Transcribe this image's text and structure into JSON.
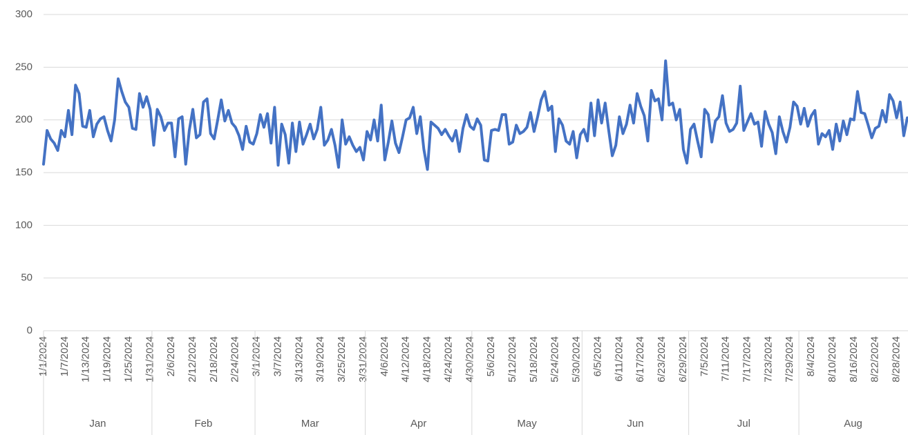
{
  "chart_data": {
    "type": "line",
    "categories": [
      "1/1/2024",
      null,
      null,
      null,
      null,
      null,
      "1/7/2024",
      null,
      null,
      null,
      null,
      null,
      "1/13/2024",
      null,
      null,
      null,
      null,
      null,
      "1/19/2024",
      null,
      null,
      null,
      null,
      null,
      "1/25/2024",
      null,
      null,
      null,
      null,
      null,
      "1/31/2024",
      null,
      null,
      null,
      null,
      null,
      "2/6/2024",
      null,
      null,
      null,
      null,
      null,
      "2/12/2024",
      null,
      null,
      null,
      null,
      null,
      "2/18/2024",
      null,
      null,
      null,
      null,
      null,
      "2/24/2024",
      null,
      null,
      null,
      null,
      null,
      "3/1/2024",
      null,
      null,
      null,
      null,
      null,
      "3/7/2024",
      null,
      null,
      null,
      null,
      null,
      "3/13/2024",
      null,
      null,
      null,
      null,
      null,
      "3/19/2024",
      null,
      null,
      null,
      null,
      null,
      "3/25/2024",
      null,
      null,
      null,
      null,
      null,
      "3/31/2024",
      null,
      null,
      null,
      null,
      null,
      "4/6/2024",
      null,
      null,
      null,
      null,
      null,
      "4/12/2024",
      null,
      null,
      null,
      null,
      null,
      "4/18/2024",
      null,
      null,
      null,
      null,
      null,
      "4/24/2024",
      null,
      null,
      null,
      null,
      null,
      "4/30/2024",
      null,
      null,
      null,
      null,
      null,
      "5/6/2024",
      null,
      null,
      null,
      null,
      null,
      "5/12/2024",
      null,
      null,
      null,
      null,
      null,
      "5/18/2024",
      null,
      null,
      null,
      null,
      null,
      "5/24/2024",
      null,
      null,
      null,
      null,
      null,
      "5/30/2024",
      null,
      null,
      null,
      null,
      null,
      "6/5/2024",
      null,
      null,
      null,
      null,
      null,
      "6/11/2024",
      null,
      null,
      null,
      null,
      null,
      "6/17/2024",
      null,
      null,
      null,
      null,
      null,
      "6/23/2024",
      null,
      null,
      null,
      null,
      null,
      "6/29/2024",
      null,
      null,
      null,
      null,
      null,
      "7/5/2024",
      null,
      null,
      null,
      null,
      null,
      "7/11/2024",
      null,
      null,
      null,
      null,
      null,
      "7/17/2024",
      null,
      null,
      null,
      null,
      null,
      "7/23/2024",
      null,
      null,
      null,
      null,
      null,
      "7/29/2024",
      null,
      null,
      null,
      null,
      null,
      "8/4/2024",
      null,
      null,
      null,
      null,
      null,
      "8/10/2024",
      null,
      null,
      null,
      null,
      null,
      "8/16/2024",
      null,
      null,
      null,
      null,
      null,
      "8/22/2024",
      null,
      null,
      null,
      null,
      null,
      "8/28/2024",
      null,
      null,
      null
    ],
    "month_labels": [
      "Jan",
      "Feb",
      "Mar",
      "Apr",
      "May",
      "Jun",
      "Jul",
      "Aug"
    ],
    "values": [
      158,
      190,
      182,
      178,
      171,
      190,
      184,
      209,
      186,
      233,
      225,
      194,
      193,
      209,
      184,
      196,
      201,
      203,
      190,
      180,
      200,
      239,
      227,
      217,
      212,
      192,
      191,
      225,
      212,
      222,
      210,
      176,
      210,
      203,
      190,
      197,
      197,
      165,
      201,
      203,
      158,
      190,
      210,
      183,
      186,
      217,
      220,
      187,
      182,
      200,
      219,
      199,
      209,
      197,
      193,
      185,
      172,
      194,
      179,
      177,
      187,
      205,
      193,
      206,
      178,
      212,
      157,
      196,
      186,
      159,
      197,
      170,
      198,
      177,
      186,
      196,
      182,
      191,
      212,
      176,
      181,
      191,
      176,
      155,
      200,
      177,
      184,
      176,
      170,
      174,
      162,
      189,
      181,
      200,
      180,
      214,
      162,
      179,
      199,
      178,
      169,
      184,
      200,
      202,
      212,
      187,
      203,
      172,
      153,
      198,
      195,
      192,
      186,
      191,
      185,
      180,
      190,
      170,
      192,
      205,
      194,
      191,
      201,
      195,
      162,
      161,
      190,
      191,
      190,
      205,
      205,
      177,
      179,
      195,
      187,
      189,
      193,
      207,
      189,
      203,
      219,
      227,
      209,
      213,
      170,
      201,
      195,
      180,
      177,
      189,
      164,
      186,
      191,
      180,
      216,
      185,
      219,
      197,
      216,
      190,
      166,
      176,
      203,
      187,
      196,
      214,
      197,
      225,
      213,
      204,
      180,
      228,
      218,
      220,
      200,
      256,
      214,
      216,
      200,
      210,
      172,
      159,
      191,
      196,
      180,
      165,
      210,
      205,
      179,
      199,
      203,
      223,
      197,
      189,
      191,
      197,
      232,
      190,
      198,
      206,
      196,
      198,
      175,
      208,
      196,
      188,
      168,
      203,
      189,
      179,
      193,
      217,
      213,
      196,
      211,
      194,
      204,
      209,
      177,
      187,
      184,
      190,
      172,
      196,
      180,
      199,
      186,
      201,
      200,
      227,
      207,
      206,
      195,
      183,
      192,
      194,
      209,
      198,
      224,
      218,
      202,
      217,
      185,
      202
    ],
    "color": "#4472c4",
    "ylim": [
      0,
      300
    ],
    "yticks": [
      0,
      50,
      100,
      150,
      200,
      250,
      300
    ],
    "grid": true
  }
}
